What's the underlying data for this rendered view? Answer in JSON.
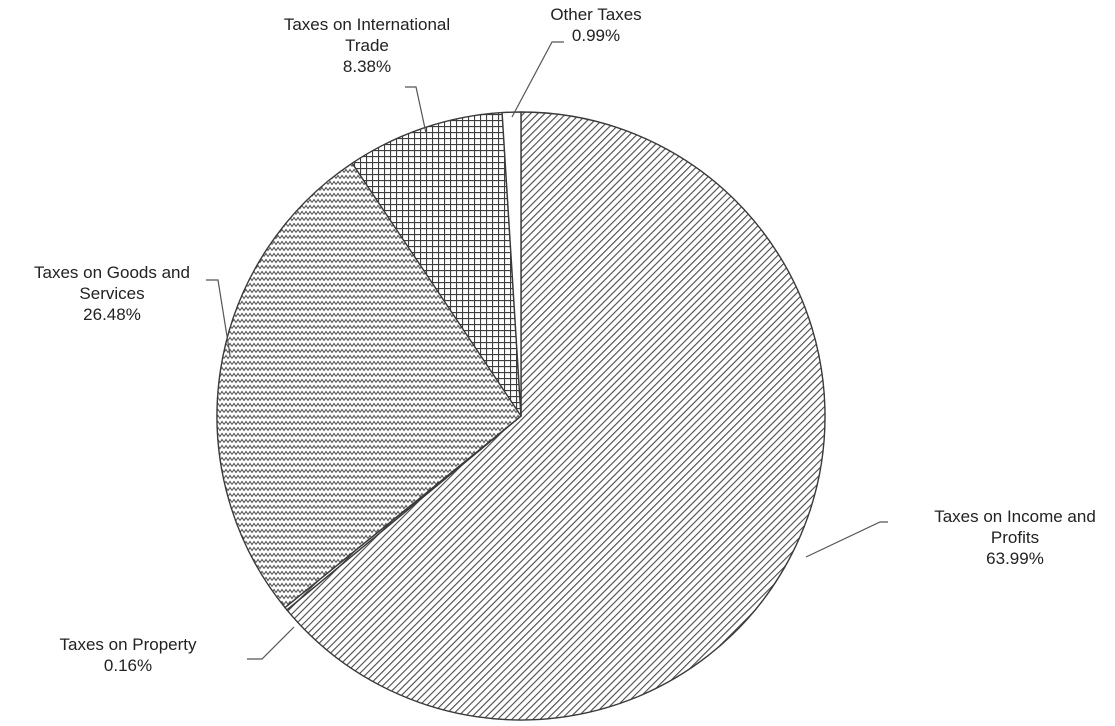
{
  "chart_data": {
    "type": "pie",
    "title": "",
    "start_angle_deg": 0,
    "direction": "clockwise",
    "series": [
      {
        "slices": [
          {
            "label": [
              "Taxes on Income and",
              "Profits"
            ],
            "value_label": "63.99%",
            "value": 63.99,
            "pattern": "diag-dense"
          },
          {
            "label": [
              "Taxes on Property"
            ],
            "value_label": "0.16%",
            "value": 0.16,
            "pattern": "diag-dense"
          },
          {
            "label": [
              "Taxes on Goods and",
              "Services"
            ],
            "value_label": "26.48%",
            "value": 26.48,
            "pattern": "zigzag"
          },
          {
            "label": [
              "Taxes on International",
              "Trade"
            ],
            "value_label": "8.38%",
            "value": 8.38,
            "pattern": "grid"
          },
          {
            "label": [
              "Other Taxes"
            ],
            "value_label": "0.99%",
            "value": 0.99,
            "pattern": "solid-white"
          }
        ]
      }
    ],
    "colors": {
      "stroke": "#3a3a3a",
      "hatch": "#4a4a4a",
      "background": "#ffffff",
      "text": "#222222"
    },
    "legend": "none"
  }
}
